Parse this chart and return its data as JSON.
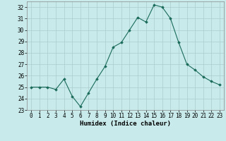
{
  "xlabel": "Humidex (Indice chaleur)",
  "x": [
    0,
    1,
    2,
    3,
    4,
    5,
    6,
    7,
    8,
    9,
    10,
    11,
    12,
    13,
    14,
    15,
    16,
    17,
    18,
    19,
    20,
    21,
    22,
    23
  ],
  "y": [
    25.0,
    25.0,
    25.0,
    24.8,
    25.7,
    24.2,
    23.3,
    24.5,
    25.7,
    26.8,
    28.5,
    28.9,
    30.0,
    31.1,
    30.7,
    32.2,
    32.0,
    31.0,
    28.9,
    27.0,
    26.5,
    25.9,
    25.5,
    25.2
  ],
  "line_color": "#1a6b5a",
  "marker": "D",
  "marker_size": 1.8,
  "bg_color": "#c8eaea",
  "grid_color": "#aacccc",
  "ylim": [
    23,
    32.5
  ],
  "yticks": [
    23,
    24,
    25,
    26,
    27,
    28,
    29,
    30,
    31,
    32
  ],
  "tick_fontsize": 5.5,
  "label_fontsize": 6.5,
  "line_width": 0.8
}
